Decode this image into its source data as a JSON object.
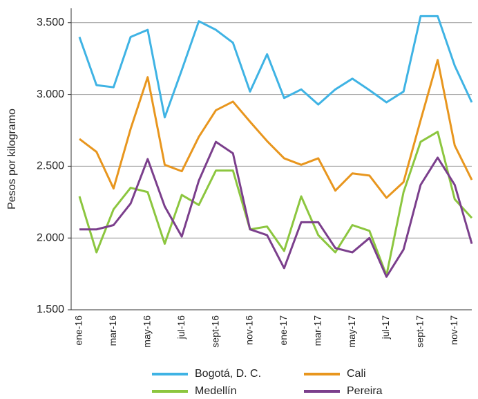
{
  "chart_data": {
    "type": "line",
    "y_label": "Pesos por kilogramo",
    "categories": [
      "ene-16",
      null,
      "mar-16",
      null,
      "may-16",
      null,
      "jul-16",
      null,
      "sept-16",
      null,
      "nov-16",
      null,
      "ene-17",
      null,
      "mar-17",
      null,
      "may-17",
      null,
      "jul-17",
      null,
      "sept-17",
      null,
      "nov-17",
      null
    ],
    "series": [
      {
        "name": "Bogotá, D. C.",
        "color": "#3fb3e4",
        "values": [
          3400,
          3065,
          3050,
          3400,
          3450,
          2840,
          3170,
          3510,
          3450,
          3360,
          3020,
          3280,
          2975,
          3035,
          2930,
          3035,
          3110,
          3030,
          2945,
          3020,
          3545,
          3545,
          3200,
          2945
        ]
      },
      {
        "name": "Cali",
        "color": "#e8961e",
        "values": [
          2690,
          2600,
          2345,
          2760,
          3120,
          2510,
          2465,
          2705,
          2890,
          2950,
          2810,
          2675,
          2555,
          2510,
          2555,
          2330,
          2450,
          2435,
          2280,
          2390,
          2820,
          3240,
          2645,
          2405
        ]
      },
      {
        "name": "Medellín",
        "color": "#8cc63f",
        "values": [
          2290,
          1900,
          2200,
          2350,
          2320,
          1960,
          2300,
          2230,
          2470,
          2470,
          2060,
          2080,
          1910,
          2290,
          2020,
          1900,
          2090,
          2050,
          1740,
          2320,
          2670,
          2740,
          2270,
          2140
        ]
      },
      {
        "name": "Pereira",
        "color": "#7b3f8c",
        "values": [
          2060,
          2060,
          2090,
          2240,
          2550,
          2220,
          2010,
          2400,
          2670,
          2590,
          2060,
          2020,
          1790,
          2110,
          2110,
          1930,
          1900,
          2000,
          1730,
          1920,
          2370,
          2560,
          2370,
          1960
        ]
      }
    ],
    "ylim": [
      1500,
      3600
    ],
    "yticks": [
      {
        "value": 1500,
        "label": "1.500"
      },
      {
        "value": 2000,
        "label": "2.000"
      },
      {
        "value": 2500,
        "label": "2.500"
      },
      {
        "value": 3000,
        "label": "3.000"
      },
      {
        "value": 3500,
        "label": "3.500"
      }
    ],
    "grid": true
  }
}
